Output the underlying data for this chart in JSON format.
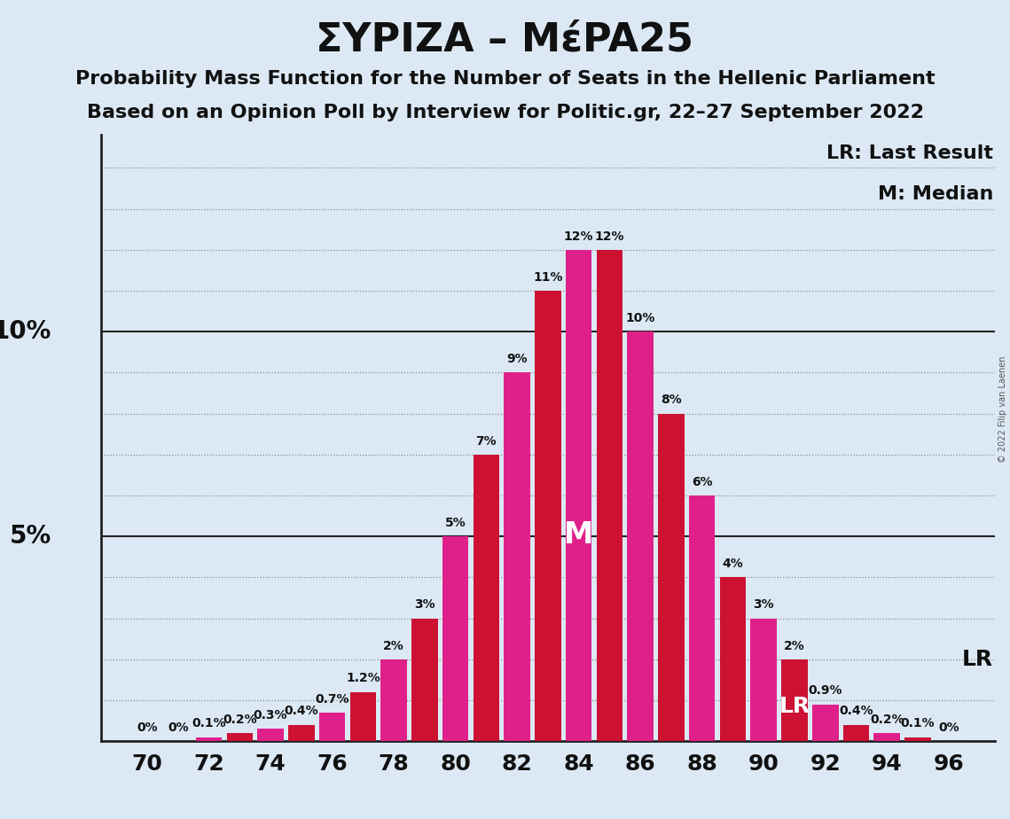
{
  "title": "ΣΥΡΙΖΑ – ΜέPA25",
  "subtitle1": "Probability Mass Function for the Number of Seats in the Hellenic Parliament",
  "subtitle2": "Based on an Opinion Poll by Interview for Politic.gr, 22–27 September 2022",
  "copyright": "© 2022 Filip van Laenen",
  "background_color": "#dce9f5",
  "bar_color_even": "#e0208a",
  "bar_color_odd": "#cc1133",
  "text_color": "#111111",
  "grid_major_color": "#222222",
  "grid_minor_color": "#888888",
  "annotation_lr_full": "LR: Last Result",
  "annotation_m_full": "M: Median",
  "annotation_lr": "LR",
  "annotation_m": "M",
  "seats": [
    70,
    71,
    72,
    73,
    74,
    75,
    76,
    77,
    78,
    79,
    80,
    81,
    82,
    83,
    84,
    85,
    86,
    87,
    88,
    89,
    90,
    91,
    92,
    93,
    94,
    95,
    96
  ],
  "probs": [
    0.0,
    0.0,
    0.001,
    0.002,
    0.003,
    0.004,
    0.007,
    0.012,
    0.02,
    0.03,
    0.05,
    0.07,
    0.09,
    0.11,
    0.12,
    0.12,
    0.1,
    0.08,
    0.06,
    0.04,
    0.03,
    0.02,
    0.009,
    0.004,
    0.002,
    0.001,
    0.0
  ],
  "labels": [
    "0%",
    "0%",
    "0.1%",
    "0.2%",
    "0.3%",
    "0.4%",
    "0.7%",
    "1.2%",
    "2%",
    "3%",
    "5%",
    "7%",
    "9%",
    "11%",
    "12%",
    "12%",
    "10%",
    "8%",
    "6%",
    "4%",
    "3%",
    "2%",
    "0.9%",
    "0.4%",
    "0.2%",
    "0.1%",
    "0%"
  ],
  "LR_seat": 91,
  "Median_seat": 84,
  "xlim": [
    68.5,
    97.5
  ],
  "ylim": [
    0,
    0.148
  ],
  "xticks": [
    70,
    72,
    74,
    76,
    78,
    80,
    82,
    84,
    86,
    88,
    90,
    92,
    94,
    96
  ],
  "major_hlines": [
    0.05,
    0.1
  ],
  "ylabel_positions": [
    [
      0.05,
      "5%"
    ],
    [
      0.1,
      "10%"
    ]
  ],
  "bar_width": 0.85,
  "title_fontsize": 32,
  "subtitle_fontsize": 16,
  "annotation_fontsize": 16,
  "tick_fontsize": 18,
  "ylabel_fontsize": 20,
  "bar_label_fontsize": 10,
  "median_label_fontsize": 24,
  "lr_label_fontsize": 18,
  "copyright_fontsize": 7,
  "figsize": [
    11.39,
    9.24
  ],
  "dpi": 100
}
